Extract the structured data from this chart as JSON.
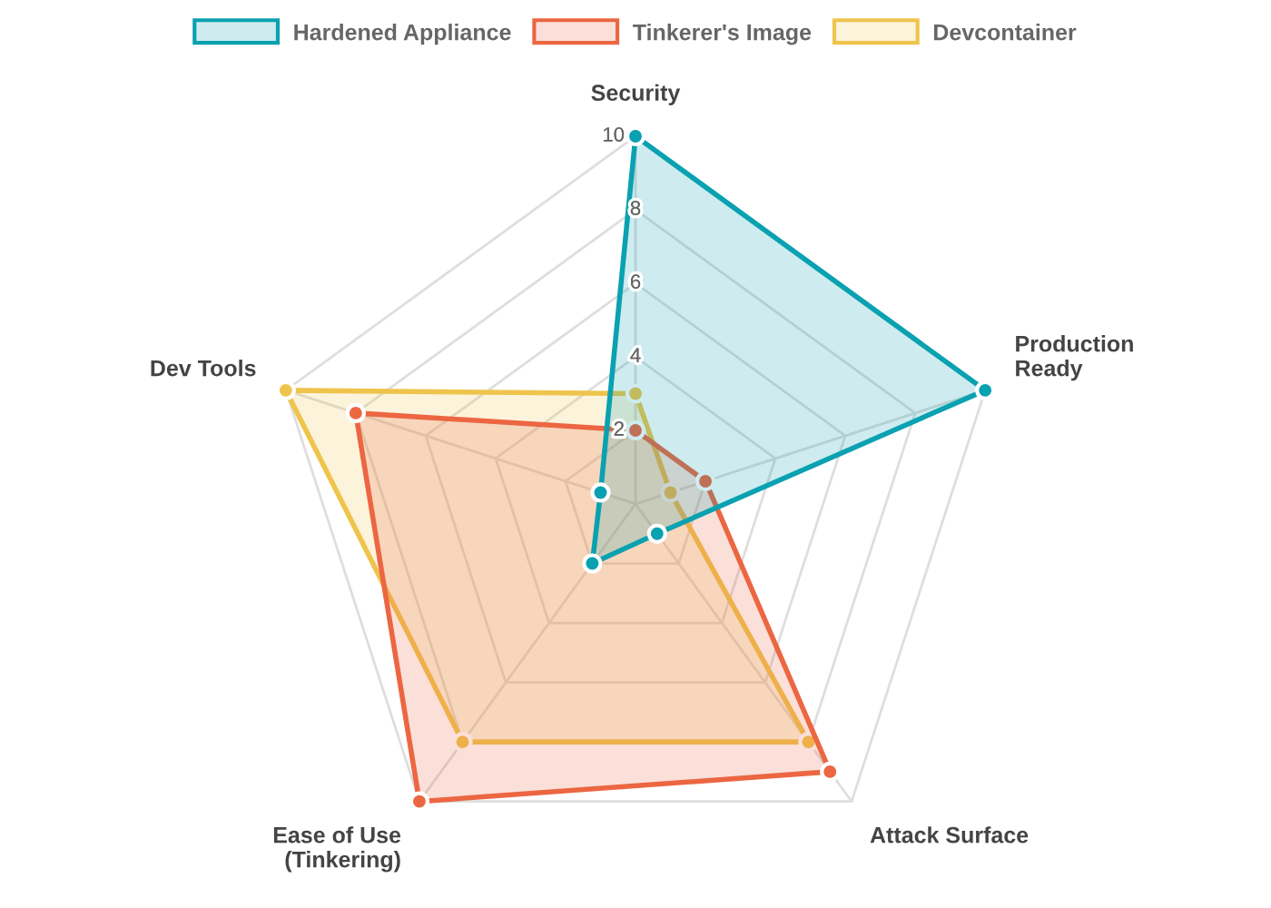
{
  "chart_data": {
    "type": "radar",
    "categories": [
      "Security",
      "Production\nReady",
      "Attack Surface",
      "Ease of Use\n(Tinkering)",
      "Dev Tools"
    ],
    "series": [
      {
        "name": "Hardened Appliance",
        "color": "#0aa1b1",
        "values": [
          10,
          10,
          1,
          2,
          1
        ]
      },
      {
        "name": "Tinkerer's Image",
        "color": "#ec6642",
        "values": [
          2,
          2,
          9,
          10,
          8
        ]
      },
      {
        "name": "Devcontainer",
        "color": "#efc44d",
        "values": [
          3,
          1,
          8,
          8,
          10
        ]
      }
    ],
    "ylim": [
      0,
      10
    ],
    "yticks": [
      2,
      4,
      6,
      8,
      10
    ],
    "grid": true,
    "legend": "top",
    "marker": "circle",
    "line_style": "solid"
  }
}
